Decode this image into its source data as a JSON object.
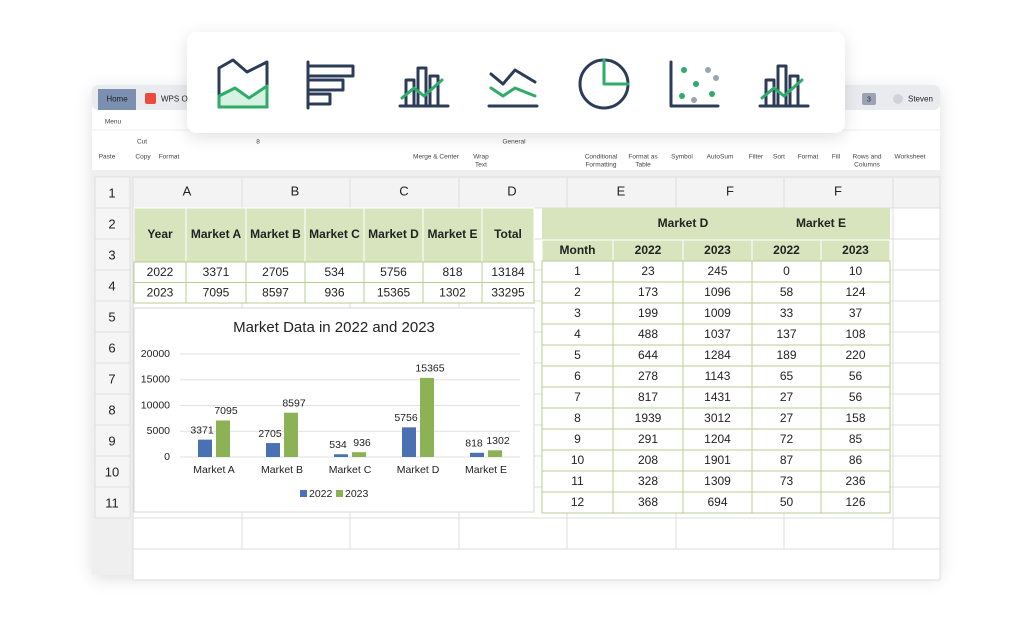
{
  "tabs": {
    "home": "Home",
    "doc": "WPS O",
    "badge": "3",
    "user": "Steven"
  },
  "toolbar": [
    "Menu",
    "Cut",
    "Paste",
    "Copy",
    "Format",
    "8",
    "Merge & Center",
    "Wrap",
    "Text",
    "General",
    "Conditional",
    "Formatting",
    "Format as",
    "Table",
    "Symbol",
    "AutoSum",
    "Filter",
    "Sort",
    "Format",
    "Fill",
    "Rows and",
    "Columns",
    "Worksheet"
  ],
  "column_headers": [
    "A",
    "B",
    "C",
    "D",
    "E",
    "F",
    "F"
  ],
  "row_headers": [
    "1",
    "2",
    "3",
    "4",
    "5",
    "6",
    "7",
    "8",
    "9",
    "10",
    "11"
  ],
  "summary_table": {
    "header": [
      "Year",
      "Market A",
      "Market B",
      "Market C",
      "Market D",
      "Market E",
      "Total"
    ],
    "rows": [
      [
        2022,
        3371,
        2705,
        534,
        5756,
        818,
        13184
      ],
      [
        2023,
        7095,
        8597,
        936,
        15365,
        1302,
        33295
      ]
    ]
  },
  "chart_data": {
    "type": "bar",
    "title": "Market Data in 2022 and 2023",
    "categories": [
      "Market A",
      "Market B",
      "Market C",
      "Market D",
      "Market E"
    ],
    "series": [
      {
        "name": "2022",
        "color": "#4a72b2",
        "values": [
          3371,
          2705,
          534,
          5756,
          818
        ]
      },
      {
        "name": "2023",
        "color": "#8db255",
        "values": [
          7095,
          8597,
          936,
          15365,
          1302
        ]
      }
    ],
    "ylim": [
      0,
      20000
    ],
    "yticks": [
      0,
      5000,
      10000,
      15000,
      20000
    ],
    "grid": true
  },
  "monthly_table": {
    "groups": [
      "Market D",
      "Market E"
    ],
    "header": [
      "Month",
      "2022",
      "2023",
      "2022",
      "2023"
    ],
    "rows": [
      [
        1,
        23,
        245,
        0,
        10
      ],
      [
        2,
        173,
        1096,
        58,
        124
      ],
      [
        3,
        199,
        1009,
        33,
        37
      ],
      [
        4,
        488,
        1037,
        137,
        108
      ],
      [
        5,
        644,
        1284,
        189,
        220
      ],
      [
        6,
        278,
        1143,
        65,
        56
      ],
      [
        7,
        817,
        1431,
        27,
        56
      ],
      [
        8,
        1939,
        3012,
        27,
        158
      ],
      [
        9,
        291,
        1204,
        72,
        85
      ],
      [
        10,
        208,
        1901,
        87,
        86
      ],
      [
        11,
        328,
        1309,
        73,
        236
      ],
      [
        12,
        368,
        694,
        50,
        126
      ]
    ]
  }
}
